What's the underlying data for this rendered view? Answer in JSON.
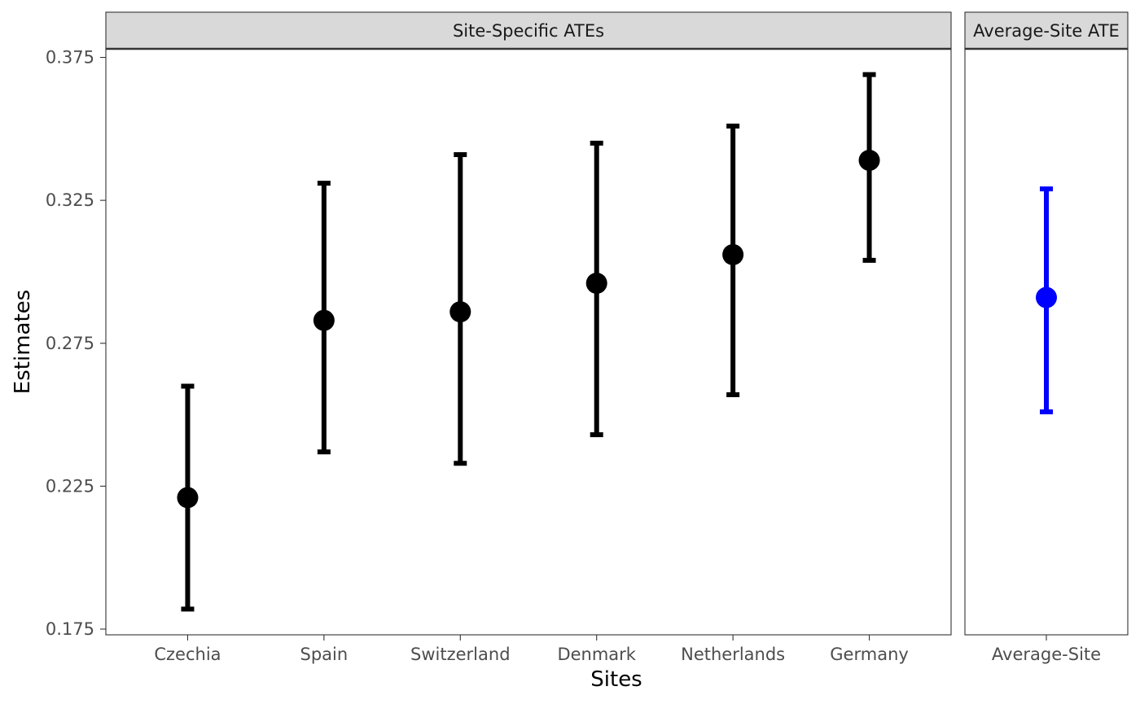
{
  "chart_data": {
    "type": "errorbar",
    "ylabel": "Estimates",
    "xlabel": "Sites",
    "ylim": [
      0.173,
      0.378
    ],
    "y_ticks": [
      "0.175",
      "0.225",
      "0.275",
      "0.325",
      "0.375"
    ],
    "panels": [
      {
        "strip_label": "Site-Specific ATEs",
        "color": "#000000",
        "categories": [
          "Czechia",
          "Spain",
          "Switzerland",
          "Denmark",
          "Netherlands",
          "Germany"
        ],
        "estimates": [
          0.221,
          0.283,
          0.286,
          0.296,
          0.306,
          0.339
        ],
        "lower": [
          0.182,
          0.237,
          0.233,
          0.243,
          0.257,
          0.304
        ],
        "upper": [
          0.26,
          0.331,
          0.341,
          0.345,
          0.351,
          0.369
        ]
      },
      {
        "strip_label": "Average-Site ATE",
        "color": "#0000ff",
        "categories": [
          "Average-Site"
        ],
        "estimates": [
          0.291
        ],
        "lower": [
          0.251
        ],
        "upper": [
          0.329
        ]
      }
    ]
  }
}
